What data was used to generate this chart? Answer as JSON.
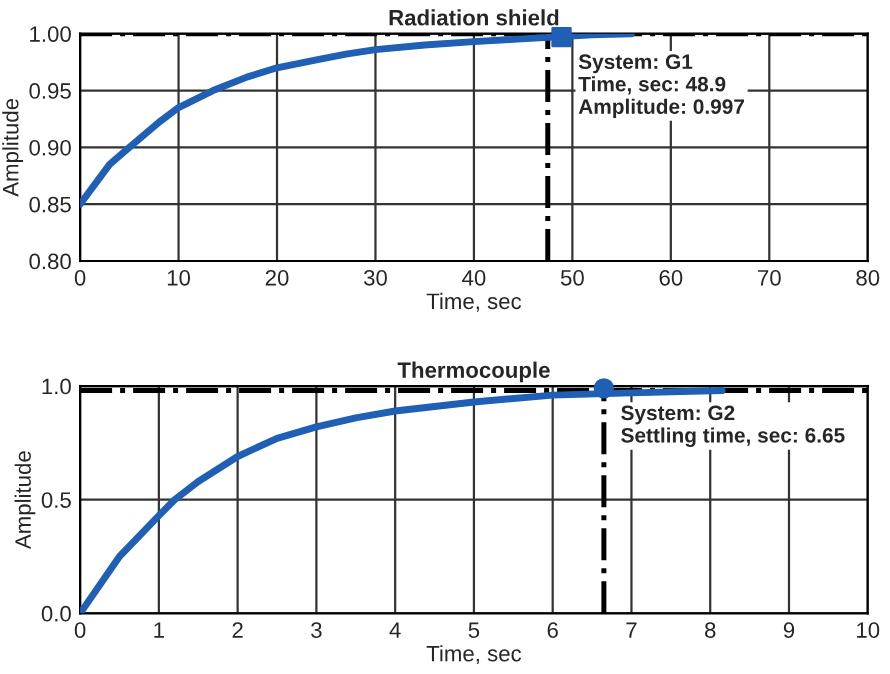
{
  "chart_data": [
    {
      "type": "line",
      "title": "Radiation shield",
      "xlabel": "Time, sec",
      "ylabel": "Amplitude",
      "xlim": [
        0,
        80
      ],
      "xticks": [
        0,
        10,
        20,
        30,
        40,
        50,
        60,
        70,
        80
      ],
      "ylim": [
        0.8,
        1.0
      ],
      "yticks": [
        {
          "value": 0.8,
          "label": "0.80"
        },
        {
          "value": 0.85,
          "label": "0.85"
        },
        {
          "value": 0.9,
          "label": "0.90"
        },
        {
          "value": 0.95,
          "label": "0.95"
        },
        {
          "value": 1.0,
          "label": "1.00"
        }
      ],
      "grid": true,
      "series": [
        {
          "color": "#1f5fb4",
          "x": [
            0,
            3,
            5,
            8,
            10,
            13.5,
            17,
            20,
            24,
            27,
            30,
            35,
            40,
            44,
            48,
            52,
            56
          ],
          "values": [
            0.85,
            0.885,
            0.9,
            0.922,
            0.935,
            0.95,
            0.962,
            0.97,
            0.977,
            0.982,
            0.986,
            0.99,
            0.993,
            0.995,
            0.997,
            0.999,
            1.0
          ]
        },
        {
          "type": "scatter",
          "marker": "square",
          "color": "#1f5fb4",
          "x": [
            48.9
          ],
          "values": [
            0.997
          ]
        }
      ],
      "ref_lines": [
        {
          "axis": "y",
          "value": 1.0,
          "color": "#000000",
          "line_style": "dashdot"
        },
        {
          "axis": "x",
          "value": 47.5,
          "color": "#000000",
          "line_style": "dashdot"
        }
      ],
      "annotations": [
        {
          "text": "System: G1\nTime, sec: 48.9\nAmplitude: 0.997",
          "x": 48.9,
          "y": 0.997
        }
      ]
    },
    {
      "type": "line",
      "title": "Thermocouple",
      "xlabel": "Time, sec",
      "ylabel": "Amplitude",
      "xlim": [
        0,
        10
      ],
      "xticks": [
        0,
        1,
        2,
        3,
        4,
        5,
        6,
        7,
        8,
        9,
        10
      ],
      "ylim": [
        0,
        1.0
      ],
      "yticks": [
        {
          "value": 0,
          "label": "0.0"
        },
        {
          "value": 0.5,
          "label": "0.5"
        },
        {
          "value": 1.0,
          "label": "1.0"
        }
      ],
      "grid": true,
      "series": [
        {
          "color": "#1f5fb4",
          "x": [
            0,
            0.5,
            1,
            1.2,
            1.5,
            2,
            2.5,
            3,
            3.5,
            4,
            4.5,
            5,
            6,
            7,
            8.15
          ],
          "values": [
            0,
            0.25,
            0.43,
            0.5,
            0.58,
            0.69,
            0.77,
            0.82,
            0.86,
            0.89,
            0.91,
            0.93,
            0.96,
            0.97,
            0.98
          ]
        },
        {
          "type": "scatter",
          "marker": "circle",
          "color": "#1f5fb4",
          "x": [
            6.65
          ],
          "values": [
            0.99
          ]
        }
      ],
      "ref_lines": [
        {
          "axis": "y",
          "value": 0.98,
          "color": "#000000",
          "line_style": "dashdot"
        },
        {
          "axis": "x",
          "value": 6.65,
          "color": "#000000",
          "line_style": "dashdot"
        }
      ],
      "annotations": [
        {
          "text": "System: G2\nSettling time, sec: 6.65",
          "x": 6.65,
          "y": 0.99
        }
      ]
    }
  ]
}
